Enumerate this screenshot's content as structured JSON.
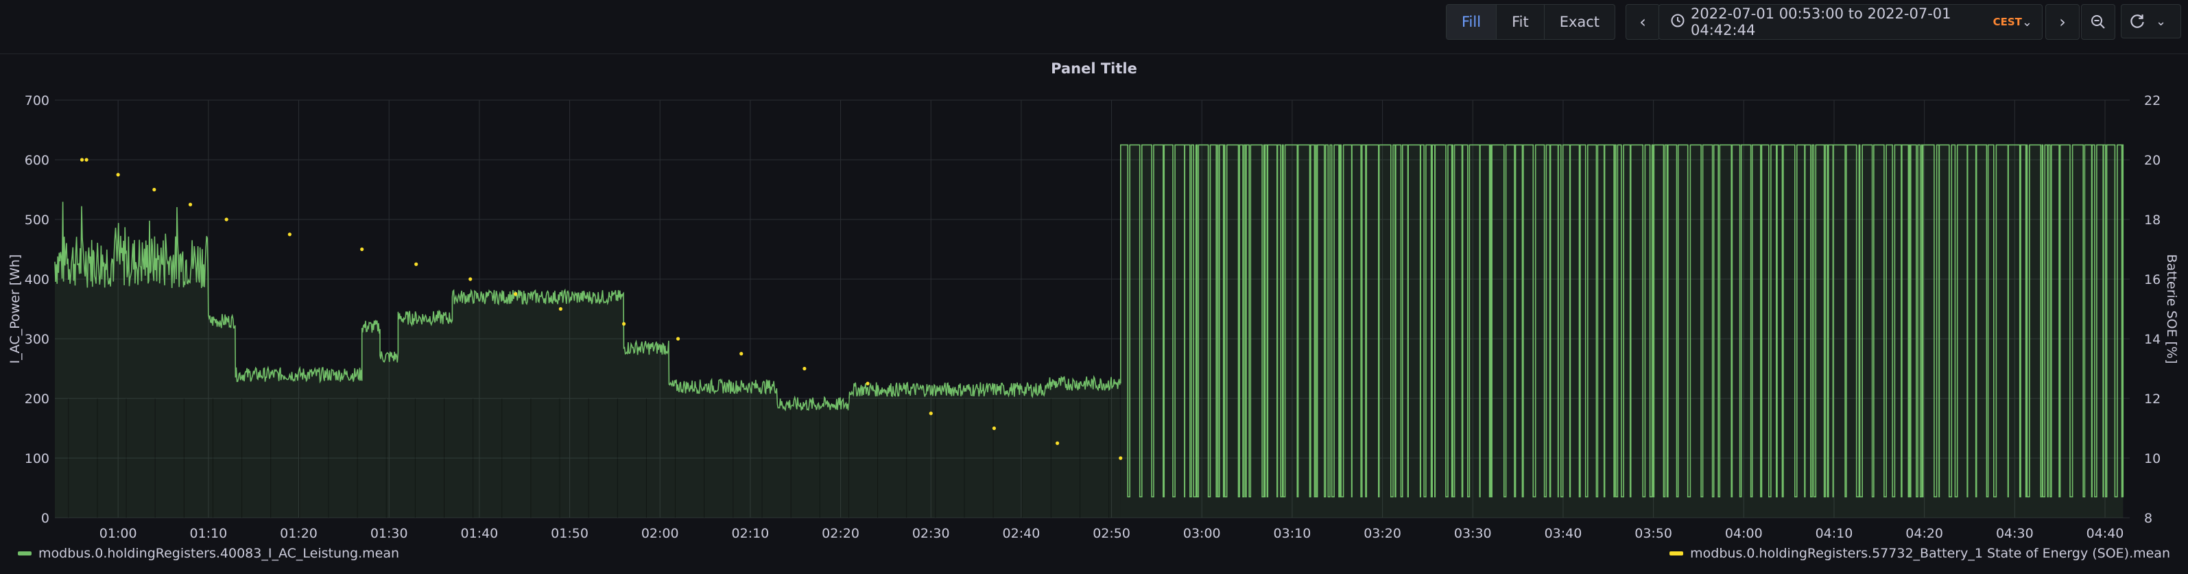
{
  "toolbar": {
    "fill_label": "Fill",
    "fit_label": "Fit",
    "exact_label": "Exact",
    "time_range": "2022-07-01 00:53:00 to 2022-07-01 04:42:44",
    "timezone": "CEST"
  },
  "panel": {
    "title": "Panel Title"
  },
  "chart_data": {
    "type": "line",
    "x_ticks": [
      "01:00",
      "01:10",
      "01:20",
      "01:30",
      "01:40",
      "01:50",
      "02:00",
      "02:10",
      "02:20",
      "02:30",
      "02:40",
      "02:50",
      "03:00",
      "03:10",
      "03:20",
      "03:30",
      "03:40",
      "03:50",
      "04:00",
      "04:10",
      "04:20",
      "04:30",
      "04:40"
    ],
    "xlim": [
      "00:53:00",
      "04:42:44"
    ],
    "y_left": {
      "label": "I_AC_Power [Wh]",
      "lim": [
        0,
        700
      ],
      "ticks": [
        0,
        100,
        200,
        300,
        400,
        500,
        600,
        700
      ]
    },
    "y_right": {
      "label": "Batterie SOE [%]",
      "lim": [
        8,
        22
      ],
      "ticks": [
        8,
        10,
        12,
        14,
        16,
        18,
        20,
        22
      ]
    },
    "grid": true,
    "legend_placement": "bottom",
    "series": [
      {
        "name": "modbus.0.holdingRegisters.40083_I_AC_Leistung.mean",
        "axis": "left",
        "color": "#73bf69",
        "fill": true,
        "segments": [
          {
            "from": "00:53",
            "to": "01:10",
            "approx_value": 430
          },
          {
            "from": "01:10",
            "to": "01:13",
            "approx_value": 330
          },
          {
            "from": "01:13",
            "to": "01:27",
            "approx_value": 240
          },
          {
            "from": "01:27",
            "to": "01:29",
            "approx_value": 320
          },
          {
            "from": "01:29",
            "to": "01:31",
            "approx_value": 270
          },
          {
            "from": "01:31",
            "to": "01:37",
            "approx_value": 335
          },
          {
            "from": "01:37",
            "to": "01:56",
            "approx_value": 370
          },
          {
            "from": "01:56",
            "to": "02:01",
            "approx_value": 285
          },
          {
            "from": "02:01",
            "to": "02:13",
            "approx_value": 220
          },
          {
            "from": "02:13",
            "to": "02:21",
            "approx_value": 190
          },
          {
            "from": "02:21",
            "to": "02:43",
            "approx_value": 215
          },
          {
            "from": "02:43",
            "to": "02:51",
            "approx_value": 225
          }
        ],
        "oscillating_range": {
          "from": "02:51",
          "to": "04:42",
          "low": 35,
          "high": 625
        }
      },
      {
        "name": "modbus.0.holdingRegisters.57732_Battery_1 State of Energy (SOE).mean",
        "axis": "right",
        "color": "#fade2a",
        "points": [
          {
            "x": "00:56",
            "y": 20
          },
          {
            "x": "00:56.5",
            "y": 20
          },
          {
            "x": "01:00",
            "y": 19.5
          },
          {
            "x": "01:04",
            "y": 19
          },
          {
            "x": "01:08",
            "y": 18.5
          },
          {
            "x": "01:12",
            "y": 18
          },
          {
            "x": "01:19",
            "y": 17.5
          },
          {
            "x": "01:27",
            "y": 17
          },
          {
            "x": "01:33",
            "y": 16.5
          },
          {
            "x": "01:39",
            "y": 16
          },
          {
            "x": "01:44",
            "y": 15.5
          },
          {
            "x": "01:49",
            "y": 15
          },
          {
            "x": "01:56",
            "y": 14.5
          },
          {
            "x": "02:02",
            "y": 14
          },
          {
            "x": "02:09",
            "y": 13.5
          },
          {
            "x": "02:16",
            "y": 13
          },
          {
            "x": "02:23",
            "y": 12.5
          },
          {
            "x": "02:30",
            "y": 11.5
          },
          {
            "x": "02:37",
            "y": 11
          },
          {
            "x": "02:44",
            "y": 10.5
          },
          {
            "x": "02:51",
            "y": 10
          }
        ]
      }
    ]
  }
}
